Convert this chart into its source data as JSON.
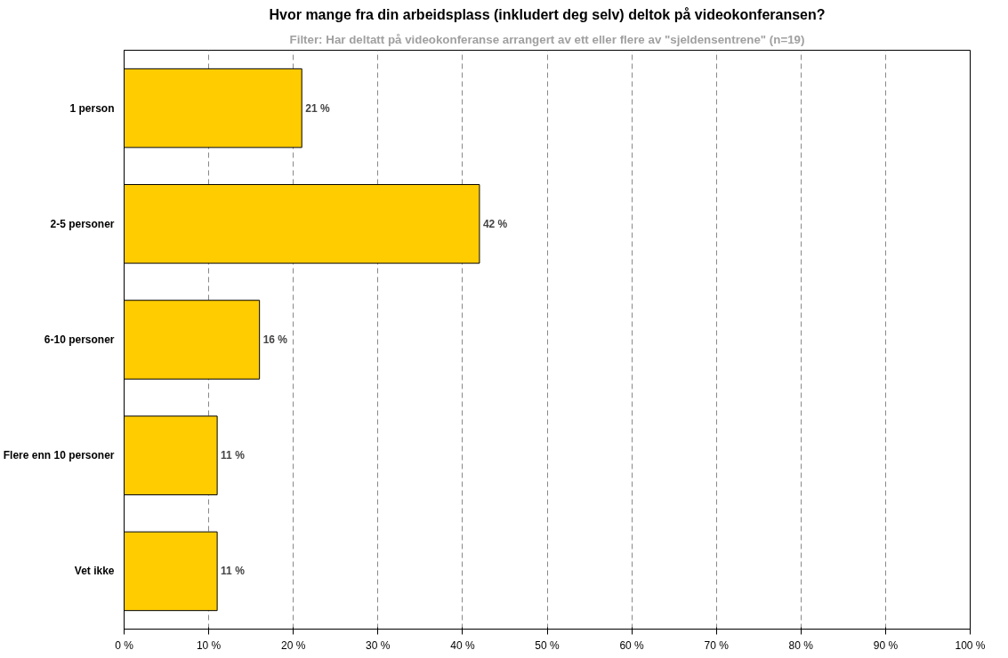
{
  "chart_data": {
    "type": "bar",
    "orientation": "horizontal",
    "title": "Hvor mange fra din arbeidsplass (inkludert deg selv) deltok på videokonferansen?",
    "subtitle": "Filter: Har deltatt på videokonferanse arrangert av ett eller flere av \"sjeldensentrene\" (n=19)",
    "categories": [
      "1 person",
      "2-5 personer",
      "6-10 personer",
      "Flere enn 10 personer",
      "Vet ikke"
    ],
    "values": [
      21,
      42,
      16,
      11,
      11
    ],
    "value_labels": [
      "21 %",
      "42 %",
      "16 %",
      "11 %",
      "11 %"
    ],
    "color": "#ffcc00",
    "xlim": [
      0,
      100
    ],
    "xticks": [
      {
        "value": 0,
        "label": "0 %"
      },
      {
        "value": 10,
        "label": "10 %"
      },
      {
        "value": 20,
        "label": "20 %"
      },
      {
        "value": 30,
        "label": "30 %"
      },
      {
        "value": 40,
        "label": "40 %"
      },
      {
        "value": 50,
        "label": "50 %"
      },
      {
        "value": 60,
        "label": "60 %"
      },
      {
        "value": 70,
        "label": "70 %"
      },
      {
        "value": 80,
        "label": "80 %"
      },
      {
        "value": 90,
        "label": "90 %"
      },
      {
        "value": 100,
        "label": "100 %"
      }
    ],
    "grid": "x"
  }
}
